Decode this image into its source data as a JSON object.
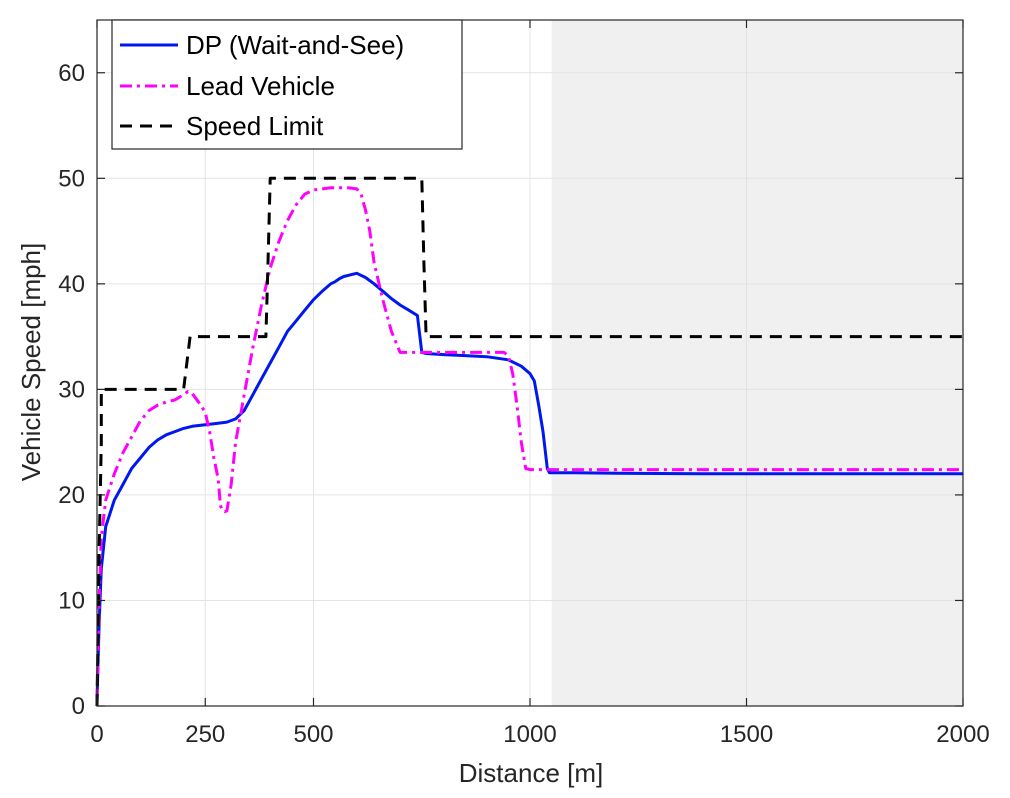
{
  "chart_data": {
    "type": "line",
    "xlabel": "Distance [m]",
    "ylabel": "Vehicle Speed [mph]",
    "xlim": [
      0,
      2000
    ],
    "ylim": [
      0,
      65
    ],
    "xticks": [
      0,
      250,
      500,
      1000,
      1500,
      2000
    ],
    "yticks": [
      0,
      10,
      20,
      30,
      40,
      50,
      60
    ],
    "grid": true,
    "legend_position": "top-left",
    "shaded_region": {
      "x_start": 1050,
      "x_end": 2000,
      "color": "#f0f0f0"
    },
    "series": [
      {
        "name": "DP (Wait-and-See)",
        "style": "solid",
        "color": "#0018f0",
        "x": [
          0,
          5,
          10,
          20,
          40,
          60,
          80,
          100,
          120,
          140,
          160,
          180,
          200,
          220,
          240,
          260,
          280,
          300,
          320,
          340,
          360,
          380,
          400,
          420,
          440,
          460,
          480,
          500,
          520,
          540,
          550,
          560,
          570,
          580,
          590,
          600,
          620,
          640,
          660,
          680,
          700,
          720,
          740,
          750,
          760,
          800,
          850,
          900,
          950,
          980,
          1000,
          1010,
          1020,
          1030,
          1040,
          1045,
          1050,
          1100,
          1200,
          1400,
          1600,
          1800,
          2000
        ],
        "y": [
          0.5,
          8,
          13,
          17,
          19.5,
          21,
          22.5,
          23.5,
          24.5,
          25.2,
          25.7,
          26,
          26.3,
          26.5,
          26.6,
          26.7,
          26.8,
          26.9,
          27.2,
          28,
          29.5,
          31,
          32.5,
          34,
          35.5,
          36.5,
          37.5,
          38.5,
          39.3,
          40,
          40.2,
          40.5,
          40.7,
          40.8,
          40.9,
          41,
          40.6,
          40,
          39.3,
          38.6,
          38,
          37.5,
          37,
          33.5,
          33.4,
          33.3,
          33.2,
          33.1,
          32.8,
          32.2,
          31.5,
          30.8,
          28.5,
          26,
          22.5,
          22.1,
          22.1,
          22.1,
          22.05,
          22,
          22,
          22,
          22
        ]
      },
      {
        "name": "Lead Vehicle",
        "style": "dashdot",
        "color": "#ff00ff",
        "x": [
          0,
          5,
          10,
          20,
          40,
          60,
          80,
          100,
          120,
          140,
          160,
          180,
          200,
          210,
          220,
          240,
          250,
          260,
          270,
          280,
          285,
          290,
          295,
          300,
          310,
          320,
          340,
          360,
          380,
          400,
          420,
          440,
          460,
          480,
          500,
          520,
          540,
          560,
          580,
          600,
          610,
          620,
          630,
          640,
          660,
          680,
          700,
          720,
          760,
          800,
          850,
          900,
          940,
          950,
          960,
          970,
          980,
          990,
          1000,
          1050,
          1200,
          1500,
          2000
        ],
        "y": [
          0.5,
          10,
          16,
          19.5,
          22,
          24,
          25.5,
          27,
          28,
          28.5,
          28.8,
          29,
          29.5,
          29.8,
          29.6,
          28.5,
          27.8,
          26,
          23.5,
          21.5,
          19,
          18.5,
          18.4,
          18.5,
          21,
          25,
          29.5,
          34,
          38,
          41.5,
          44,
          46,
          47.5,
          48.5,
          48.9,
          49,
          49.1,
          49.1,
          49.1,
          49,
          48.5,
          47,
          45,
          42,
          38.5,
          35.5,
          33.5,
          33.5,
          33.5,
          33.5,
          33.5,
          33.5,
          33.5,
          33.2,
          31.5,
          28.5,
          25,
          22.5,
          22.4,
          22.4,
          22.4,
          22.4,
          22.4
        ]
      },
      {
        "name": "Speed Limit",
        "style": "dashed",
        "color": "#000000",
        "x": [
          0,
          5,
          10,
          10,
          200,
          215,
          215,
          390,
          395,
          400,
          750,
          755,
          760,
          2000
        ],
        "y": [
          0,
          15,
          25,
          30,
          30,
          35,
          35,
          35,
          42,
          50,
          50,
          42,
          35,
          35
        ]
      }
    ]
  }
}
